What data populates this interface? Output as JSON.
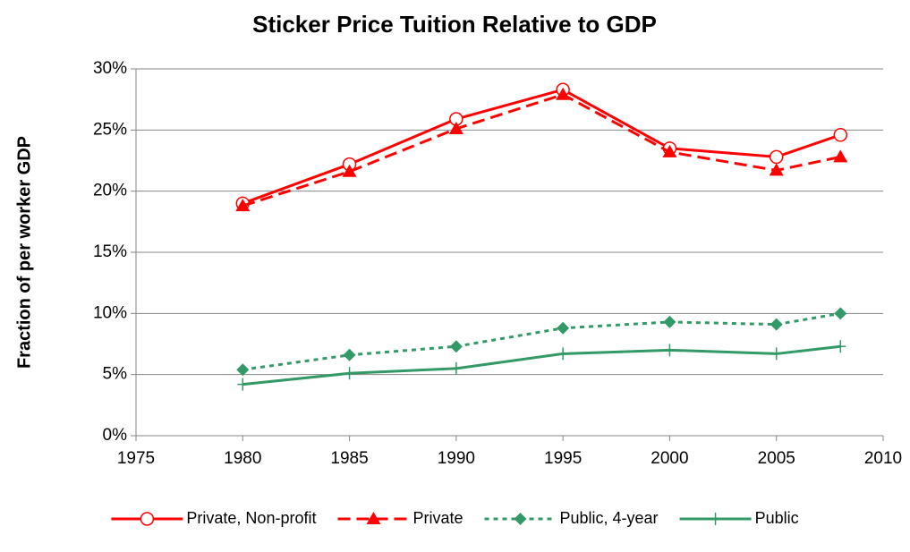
{
  "chart_data": {
    "type": "line",
    "title": "Sticker Price Tuition Relative to GDP",
    "y_label": "Fraction of per worker GDP",
    "x": [
      1980,
      1985,
      1990,
      1995,
      2000,
      2005,
      2008
    ],
    "series": [
      {
        "name": "Private, Non-profit",
        "color": "#ff0000",
        "marker": "circle",
        "dash": "solid",
        "values": [
          19.0,
          22.2,
          25.9,
          28.3,
          23.5,
          22.8,
          24.6
        ]
      },
      {
        "name": "Private",
        "color": "#ff0000",
        "marker": "triangle",
        "dash": "dashed",
        "values": [
          18.8,
          21.6,
          25.1,
          27.9,
          23.2,
          21.7,
          22.8
        ]
      },
      {
        "name": "Public, 4-year",
        "color": "#339966",
        "marker": "diamond",
        "dash": "dotted",
        "values": [
          5.4,
          6.6,
          7.3,
          8.8,
          9.3,
          9.1,
          10.0
        ]
      },
      {
        "name": "Public",
        "color": "#339966",
        "marker": "plus",
        "dash": "solid",
        "values": [
          4.2,
          5.1,
          5.5,
          6.7,
          7.0,
          6.7,
          7.3
        ]
      }
    ],
    "xlim": [
      1975,
      2010
    ],
    "xticks": [
      1975,
      1980,
      1985,
      1990,
      1995,
      2000,
      2005,
      2010
    ],
    "ylim": [
      0,
      30
    ],
    "yticks": [
      {
        "value": 0,
        "label": "0%"
      },
      {
        "value": 5,
        "label": "5%"
      },
      {
        "value": 10,
        "label": "10%"
      },
      {
        "value": 15,
        "label": "15%"
      },
      {
        "value": 20,
        "label": "20%"
      },
      {
        "value": 25,
        "label": "25%"
      },
      {
        "value": 30,
        "label": "30%"
      }
    ],
    "grid": true,
    "legend": "bottom"
  }
}
